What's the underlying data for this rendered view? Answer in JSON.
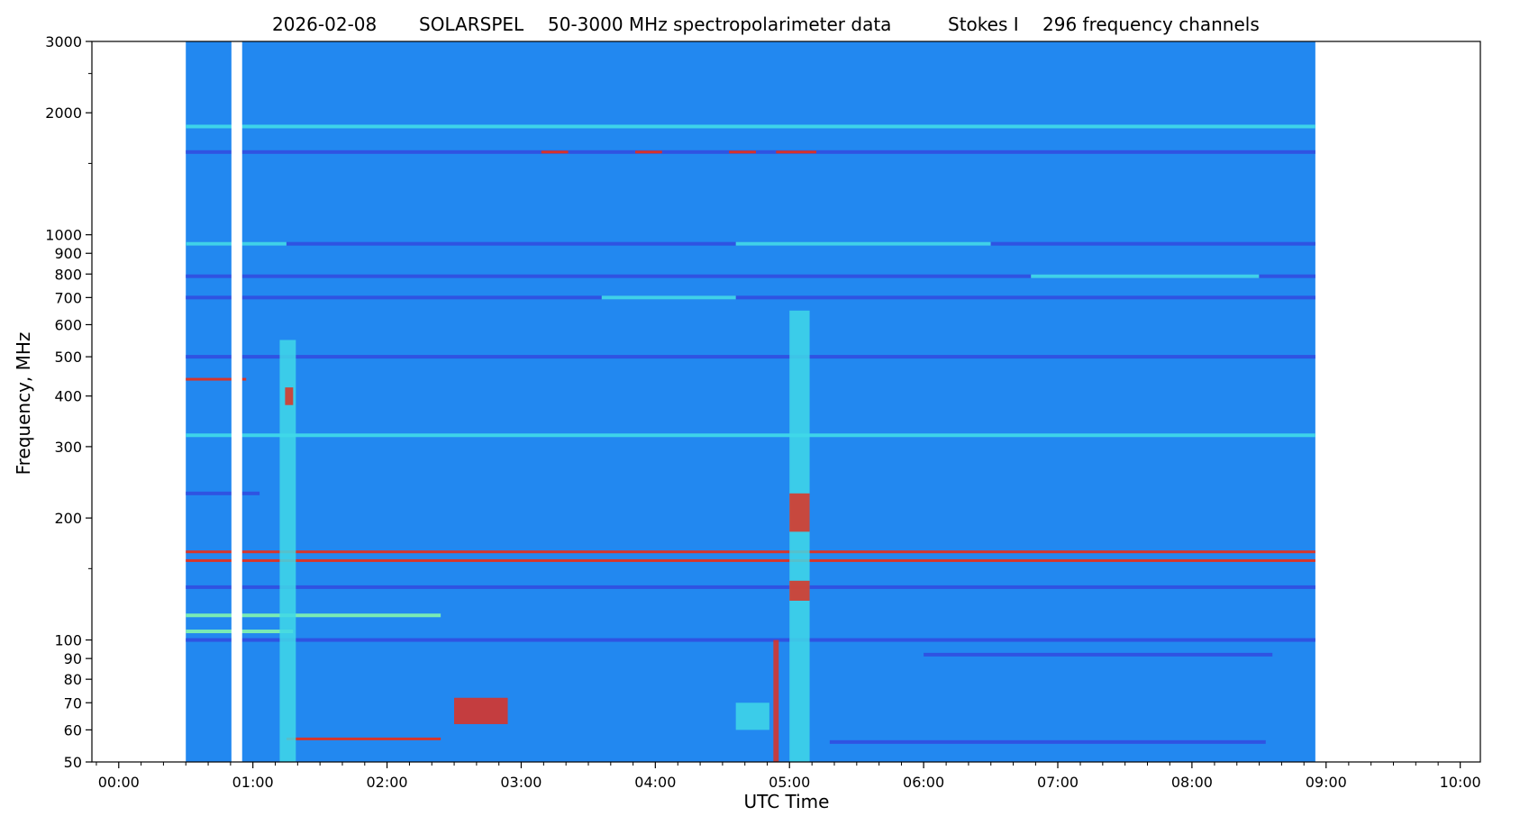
{
  "chart_data": {
    "type": "heatmap",
    "title_parts": [
      "2026-02-08",
      "SOLARSPEL",
      "50-3000 MHz spectropolarimeter data",
      "Stokes I",
      "296 frequency channels"
    ],
    "xlabel": "UTC Time",
    "ylabel": "Frequency, MHz",
    "xaxis": {
      "unit": "hours",
      "range": [
        -0.2,
        10.15
      ],
      "tick_values": [
        0,
        1,
        2,
        3,
        4,
        5,
        6,
        7,
        8,
        9,
        10
      ],
      "tick_labels": [
        "00:00",
        "01:00",
        "02:00",
        "03:00",
        "04:00",
        "05:00",
        "06:00",
        "07:00",
        "08:00",
        "09:00",
        "10:00"
      ],
      "minor_step": 0.1667
    },
    "yaxis": {
      "scale": "log",
      "range": [
        50,
        3000
      ],
      "tick_values": [
        50,
        60,
        70,
        80,
        90,
        100,
        200,
        300,
        400,
        500,
        600,
        700,
        800,
        900,
        1000,
        2000,
        3000
      ],
      "tick_labels": [
        "50",
        "60",
        "70",
        "80",
        "90",
        "100",
        "200",
        "300",
        "400",
        "500",
        "600",
        "700",
        "800",
        "900",
        "1000",
        "2000",
        "3000"
      ],
      "minor_values": [
        1500,
        2500,
        150
      ]
    },
    "data_coverage_hours": [
      0.5,
      8.92
    ],
    "data_gap_hours": [
      0.84,
      0.92
    ],
    "colormap": {
      "name": "jet",
      "background": "#2288f0",
      "low": "#3050e0",
      "mid": "#40d8e8",
      "midhigh": "#80f0b0",
      "high": "#e03020"
    },
    "horizontal_bands": [
      {
        "freq": 1850,
        "t_start": 0.5,
        "t_end": 8.92,
        "level": "mid"
      },
      {
        "freq": 1600,
        "t_start": 0.5,
        "t_end": 8.92,
        "level": "low"
      },
      {
        "freq": 1600,
        "t_start": 3.15,
        "t_end": 3.35,
        "level": "high"
      },
      {
        "freq": 1600,
        "t_start": 3.85,
        "t_end": 4.05,
        "level": "high"
      },
      {
        "freq": 1600,
        "t_start": 4.55,
        "t_end": 4.75,
        "level": "high"
      },
      {
        "freq": 1600,
        "t_start": 4.9,
        "t_end": 5.2,
        "level": "high"
      },
      {
        "freq": 950,
        "t_start": 0.5,
        "t_end": 8.92,
        "level": "low"
      },
      {
        "freq": 950,
        "t_start": 0.5,
        "t_end": 1.25,
        "level": "mid"
      },
      {
        "freq": 950,
        "t_start": 4.6,
        "t_end": 6.5,
        "level": "mid"
      },
      {
        "freq": 790,
        "t_start": 0.5,
        "t_end": 8.92,
        "level": "low"
      },
      {
        "freq": 790,
        "t_start": 6.8,
        "t_end": 8.5,
        "level": "mid"
      },
      {
        "freq": 700,
        "t_start": 0.5,
        "t_end": 8.92,
        "level": "low"
      },
      {
        "freq": 700,
        "t_start": 3.6,
        "t_end": 4.6,
        "level": "mid"
      },
      {
        "freq": 500,
        "t_start": 0.5,
        "t_end": 8.92,
        "level": "low"
      },
      {
        "freq": 440,
        "t_start": 0.5,
        "t_end": 0.95,
        "level": "high"
      },
      {
        "freq": 320,
        "t_start": 0.5,
        "t_end": 8.92,
        "level": "mid"
      },
      {
        "freq": 230,
        "t_start": 0.5,
        "t_end": 1.05,
        "level": "low"
      },
      {
        "freq": 165,
        "t_start": 0.5,
        "t_end": 8.92,
        "level": "high"
      },
      {
        "freq": 157,
        "t_start": 0.5,
        "t_end": 8.92,
        "level": "high"
      },
      {
        "freq": 135,
        "t_start": 0.5,
        "t_end": 8.92,
        "level": "low"
      },
      {
        "freq": 115,
        "t_start": 0.5,
        "t_end": 2.4,
        "level": "midhigh"
      },
      {
        "freq": 105,
        "t_start": 0.5,
        "t_end": 1.3,
        "level": "midhigh"
      },
      {
        "freq": 100,
        "t_start": 0.5,
        "t_end": 8.92,
        "level": "low"
      },
      {
        "freq": 92,
        "t_start": 6.0,
        "t_end": 8.6,
        "level": "low"
      },
      {
        "freq": 57,
        "t_start": 1.25,
        "t_end": 2.4,
        "level": "high"
      },
      {
        "freq": 56,
        "t_start": 5.3,
        "t_end": 8.55,
        "level": "low"
      }
    ],
    "bursts": [
      {
        "t_start": 1.2,
        "t_end": 1.32,
        "f_low": 50,
        "f_high": 550,
        "level": "mid"
      },
      {
        "t_start": 1.24,
        "t_end": 1.3,
        "f_low": 380,
        "f_high": 420,
        "level": "high"
      },
      {
        "t_start": 2.5,
        "t_end": 2.9,
        "f_low": 62,
        "f_high": 72,
        "level": "high"
      },
      {
        "t_start": 4.6,
        "t_end": 4.85,
        "f_low": 60,
        "f_high": 70,
        "level": "mid"
      },
      {
        "t_start": 4.88,
        "t_end": 4.92,
        "f_low": 50,
        "f_high": 100,
        "level": "high"
      },
      {
        "t_start": 5.0,
        "t_end": 5.15,
        "f_low": 50,
        "f_high": 650,
        "level": "mid"
      },
      {
        "t_start": 5.0,
        "t_end": 5.15,
        "f_low": 185,
        "f_high": 230,
        "level": "high"
      },
      {
        "t_start": 5.0,
        "t_end": 5.15,
        "f_low": 125,
        "f_high": 140,
        "level": "high"
      }
    ]
  }
}
